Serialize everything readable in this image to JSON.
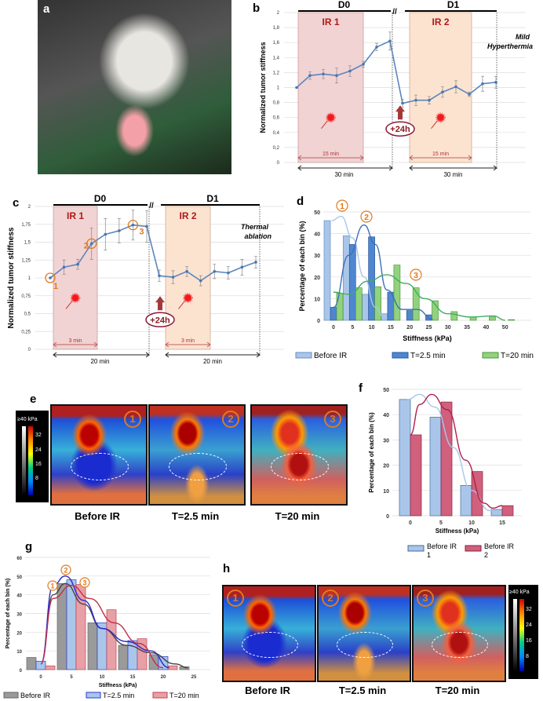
{
  "panels": {
    "a": "a",
    "b": "b",
    "c": "c",
    "d": "d",
    "e": "e",
    "f": "f",
    "g": "g",
    "h": "h"
  },
  "images_e": {
    "labels": [
      "Before IR",
      "T=2.5 min",
      "T=20 min"
    ],
    "badges": [
      "1",
      "2",
      "3"
    ],
    "colorbar": {
      "top": "≥40 kPa",
      "ticks": [
        "32",
        "24",
        "16",
        "8"
      ]
    }
  },
  "images_h": {
    "labels": [
      "Before IR",
      "T=2.5 min",
      "T=20 min"
    ],
    "badges": [
      "1",
      "2",
      "3"
    ],
    "colorbar": {
      "top": "≥40 kPa",
      "ticks": [
        "32",
        "24",
        "16",
        "8"
      ]
    }
  },
  "chart_data": [
    {
      "id": "b",
      "type": "line",
      "ylabel": "Normalized tumor stiffness",
      "ylim": [
        0,
        2
      ],
      "yticks": [
        "0",
        "0,2",
        "0,4",
        "0,6",
        "0,8",
        "1",
        "1,2",
        "1,4",
        "1,6",
        "1,8",
        "2"
      ],
      "phases": [
        "D0",
        "D1"
      ],
      "bands": [
        "IR 1",
        "IR 2"
      ],
      "band_duration": "15 min",
      "total_duration": "30 min",
      "delay": "+24h",
      "annotation": [
        "Mild",
        "Hyperthermia"
      ],
      "d0": [
        1,
        1.16,
        1.18,
        1.16,
        1.22,
        1.31,
        1.54,
        1.62
      ],
      "d0_err": [
        0,
        0.05,
        0.06,
        0.1,
        0.07,
        0.04,
        0.05,
        0.12
      ],
      "d1": [
        0.79,
        0.83,
        0.83,
        0.94,
        1.01,
        0.91,
        1.05,
        1.07
      ],
      "d1_err": [
        0.05,
        0.07,
        0.05,
        0.07,
        0.08,
        0.03,
        0.1,
        0.08
      ]
    },
    {
      "id": "c",
      "type": "line",
      "ylabel": "Normalized tumor stiffness",
      "ylim": [
        0,
        2
      ],
      "yticks": [
        "0",
        "0,25",
        "0,5",
        "0,75",
        "1",
        "1,25",
        "1,5",
        "1,75",
        "2"
      ],
      "phases": [
        "D0",
        "D1"
      ],
      "bands": [
        "IR 1",
        "IR 2"
      ],
      "band_duration": "3 min",
      "total_duration": "20 min",
      "delay": "+24h",
      "annotation": [
        "Thermal",
        "ablation"
      ],
      "markers": [
        "1",
        "2",
        "3"
      ],
      "d0": [
        1,
        1.15,
        1.19,
        1.48,
        1.61,
        1.66,
        1.74,
        1.72
      ],
      "d0_err": [
        0,
        0.1,
        0.07,
        0.22,
        0.22,
        0.17,
        0.21,
        0.22
      ],
      "d1": [
        1.03,
        1.01,
        1.09,
        0.96,
        1.09,
        1.07,
        1.15,
        1.22
      ],
      "d1_err": [
        0.08,
        0.09,
        0.07,
        0.07,
        0.1,
        0.09,
        0.11,
        0.08
      ]
    },
    {
      "id": "d",
      "type": "bar",
      "xlabel": "Stiffness (kPa)",
      "ylabel": "Percentage of each bin (%)",
      "ylim": [
        0,
        50
      ],
      "categories": [
        "0",
        "5",
        "10",
        "15",
        "20",
        "25",
        "30",
        "35",
        "40",
        "50"
      ],
      "yticks": [
        "0",
        "10",
        "20",
        "30",
        "40",
        "50"
      ],
      "markers": [
        "1",
        "2",
        "3"
      ],
      "series": [
        {
          "name": "Before IR",
          "color": "#a9c6ea",
          "values": [
            46,
            39,
            12,
            3,
            0,
            0,
            0,
            0,
            0,
            0
          ]
        },
        {
          "name": "T=2.5 min",
          "color": "#4f86d0",
          "values": [
            6,
            35,
            38.5,
            13,
            4.5,
            2.5,
            0,
            0,
            0,
            0
          ]
        },
        {
          "name": "T=20 min",
          "color": "#92d27e",
          "values": [
            12.5,
            15,
            15.5,
            25.5,
            15,
            9,
            4,
            1.5,
            1.5,
            0.3
          ]
        }
      ],
      "fits": [
        {
          "color": "#a9c6ea",
          "points": [
            [
              -0.5,
              46
            ],
            [
              2,
              48
            ],
            [
              5,
              38
            ],
            [
              8,
              20
            ],
            [
              11,
              6
            ],
            [
              13,
              2
            ]
          ]
        },
        {
          "color": "#3d6fb8",
          "points": [
            [
              0,
              6
            ],
            [
              4,
              30
            ],
            [
              8,
              44
            ],
            [
              11,
              35
            ],
            [
              14,
              14
            ],
            [
              18,
              5
            ],
            [
              22,
              5
            ],
            [
              26,
              0.5
            ]
          ]
        },
        {
          "color": "#3fae5c",
          "points": [
            [
              0,
              13
            ],
            [
              4,
              12
            ],
            [
              9,
              18
            ],
            [
              14,
              21
            ],
            [
              19,
              17
            ],
            [
              24,
              10
            ],
            [
              30,
              3
            ],
            [
              36,
              1.5
            ],
            [
              42,
              2
            ],
            [
              45,
              0
            ]
          ]
        }
      ]
    },
    {
      "id": "f",
      "type": "bar",
      "xlabel": "Stiffness (kPa)",
      "ylabel": "Percentage of each bin (%)",
      "ylim": [
        0,
        50
      ],
      "categories": [
        "0",
        "5",
        "10",
        "15"
      ],
      "yticks": [
        "0",
        "10",
        "20",
        "30",
        "40",
        "50"
      ],
      "series": [
        {
          "name": "Before IR 1",
          "color": "#a9c6ea",
          "values": [
            46,
            39,
            12,
            2.5
          ]
        },
        {
          "name": "Before IR 2",
          "color": "#d0607c",
          "values": [
            32,
            45,
            17.5,
            4
          ]
        }
      ],
      "fits": [
        {
          "color": "#a9c6ea",
          "points": [
            [
              -0.5,
              46
            ],
            [
              1.5,
              48
            ],
            [
              4,
              43
            ],
            [
              7,
              27
            ],
            [
              10,
              10
            ],
            [
              13,
              2
            ],
            [
              14,
              2
            ]
          ]
        },
        {
          "color": "#b0204a",
          "points": [
            [
              0,
              32
            ],
            [
              1.5,
              44
            ],
            [
              3.5,
              48
            ],
            [
              6,
              42
            ],
            [
              9,
              22
            ],
            [
              12,
              5
            ],
            [
              13.5,
              3
            ],
            [
              15,
              4
            ]
          ]
        }
      ]
    },
    {
      "id": "g",
      "type": "bar",
      "xlabel": "Stiffness (kPa)",
      "ylabel": "Percentage of each bin (%)",
      "ylim": [
        0,
        60
      ],
      "categories": [
        "0",
        "5",
        "10",
        "15",
        "20",
        "25"
      ],
      "yticks": [
        "0",
        "10",
        "20",
        "30",
        "40",
        "50",
        "60"
      ],
      "markers": [
        "1",
        "2",
        "3"
      ],
      "series": [
        {
          "name": "Before IR",
          "color": "#9a9a9a",
          "values": [
            6.5,
            46,
            25,
            13,
            8,
            1.5
          ]
        },
        {
          "name": "T=2.5 min",
          "color": "#a9c6ea",
          "values": [
            4.5,
            48,
            25,
            15.5,
            7,
            0
          ]
        },
        {
          "name": "T=20 min",
          "color": "#e8a0a6",
          "values": [
            2,
            45.5,
            32,
            16.5,
            2,
            0
          ]
        }
      ],
      "fits": [
        {
          "color": "#444444",
          "points": [
            [
              0,
              3
            ],
            [
              2,
              40
            ],
            [
              4,
              46
            ],
            [
              7,
              35
            ],
            [
              10,
              22
            ],
            [
              14,
              13
            ],
            [
              18,
              9
            ],
            [
              22,
              3
            ],
            [
              24,
              1
            ]
          ]
        },
        {
          "color": "#2a2ad0",
          "points": [
            [
              0,
              3
            ],
            [
              2,
              45
            ],
            [
              4,
              50
            ],
            [
              7,
              37
            ],
            [
              10,
              22
            ],
            [
              14,
              15
            ],
            [
              18,
              10
            ],
            [
              21,
              1
            ]
          ]
        },
        {
          "color": "#c0304a",
          "points": [
            [
              0,
              3
            ],
            [
              2,
              38
            ],
            [
              5,
              45
            ],
            [
              8,
              38
            ],
            [
              12,
              25
            ],
            [
              16,
              14
            ],
            [
              20,
              1
            ]
          ]
        }
      ]
    }
  ]
}
